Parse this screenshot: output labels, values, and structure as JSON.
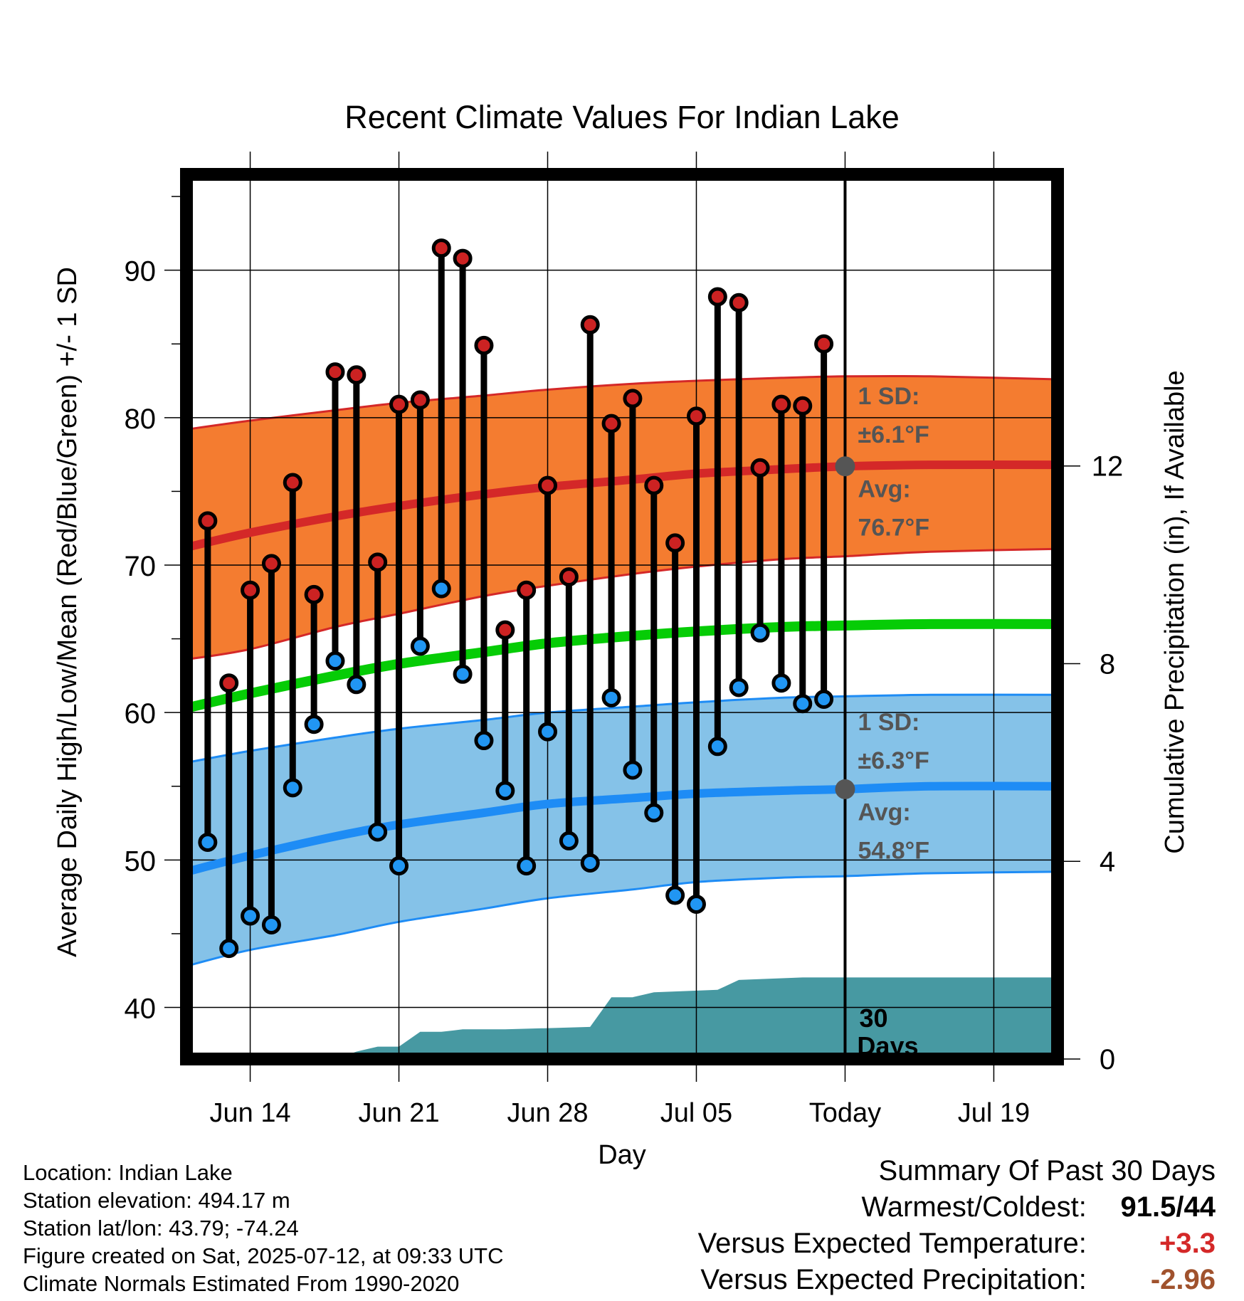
{
  "colors": {
    "high_band": "#f47c30",
    "high_line": "#d42828",
    "low_band": "#85c2e8",
    "low_line": "#1e8cf5",
    "mean_line": "#06cc06",
    "precip": "#4799a2",
    "high_marker": "#cc2222",
    "low_marker": "#2196f3",
    "avg_marker": "#555555",
    "annotation": "#555555",
    "temp_anomaly": "#d42828",
    "precip_anomaly": "#a0522d"
  },
  "chart_data": {
    "type": "line",
    "title": "Recent Climate Values For Indian Lake",
    "xlabel": "Day",
    "ylabel": "Average Daily High/Low/Mean (Red/Blue/Green) +/- 1 SD",
    "y2label": "Cumulative Precipitation (in), If Available",
    "ylim": [
      36.5,
      96.5
    ],
    "y_ticks": [
      40,
      50,
      60,
      70,
      80,
      90
    ],
    "y2lim": [
      0,
      17.9
    ],
    "y2_ticks": [
      0,
      4,
      8,
      12
    ],
    "xlim": [
      "2025-06-11",
      "2025-07-22"
    ],
    "x_ticks": [
      {
        "date": "2025-06-14",
        "label": "Jun 14"
      },
      {
        "date": "2025-06-21",
        "label": "Jun 21"
      },
      {
        "date": "2025-06-28",
        "label": "Jun 28"
      },
      {
        "date": "2025-07-05",
        "label": "Jul 05"
      },
      {
        "date": "2025-07-12",
        "label": "Today"
      },
      {
        "date": "2025-07-19",
        "label": "Jul 19"
      }
    ],
    "grid": true,
    "today": "2025-07-12",
    "normals": {
      "dates": [
        "2025-06-11",
        "2025-06-14",
        "2025-06-18",
        "2025-06-21",
        "2025-06-25",
        "2025-06-28",
        "2025-07-02",
        "2025-07-05",
        "2025-07-09",
        "2025-07-12",
        "2025-07-16",
        "2025-07-22"
      ],
      "high_mean": [
        71.2,
        72.2,
        73.3,
        74.0,
        74.8,
        75.3,
        75.8,
        76.2,
        76.5,
        76.7,
        76.8,
        76.8
      ],
      "high_upper": [
        79.2,
        79.8,
        80.5,
        81.0,
        81.5,
        81.9,
        82.3,
        82.5,
        82.7,
        82.8,
        82.8,
        82.6
      ],
      "high_lower": [
        63.6,
        64.3,
        65.8,
        66.7,
        67.9,
        68.6,
        69.4,
        69.9,
        70.4,
        70.6,
        70.9,
        71.1
      ],
      "mean": [
        60.3,
        61.3,
        62.5,
        63.3,
        64.1,
        64.7,
        65.2,
        65.5,
        65.8,
        65.9,
        66.0,
        66.0
      ],
      "low_mean": [
        49.2,
        50.3,
        51.6,
        52.4,
        53.2,
        53.8,
        54.2,
        54.5,
        54.7,
        54.8,
        55.0,
        55.0
      ],
      "low_upper": [
        56.6,
        57.4,
        58.3,
        58.9,
        59.5,
        60.0,
        60.4,
        60.7,
        61.0,
        61.1,
        61.2,
        61.2
      ],
      "low_lower": [
        42.8,
        43.9,
        44.9,
        45.8,
        46.7,
        47.4,
        48.0,
        48.5,
        48.8,
        48.9,
        49.1,
        49.2
      ]
    },
    "daily": {
      "dates": [
        "2025-06-12",
        "2025-06-13",
        "2025-06-14",
        "2025-06-15",
        "2025-06-16",
        "2025-06-17",
        "2025-06-18",
        "2025-06-19",
        "2025-06-20",
        "2025-06-21",
        "2025-06-22",
        "2025-06-23",
        "2025-06-24",
        "2025-06-25",
        "2025-06-26",
        "2025-06-27",
        "2025-06-28",
        "2025-06-29",
        "2025-06-30",
        "2025-07-01",
        "2025-07-02",
        "2025-07-03",
        "2025-07-04",
        "2025-07-05",
        "2025-07-06",
        "2025-07-07",
        "2025-07-08",
        "2025-07-09",
        "2025-07-10",
        "2025-07-11"
      ],
      "high": [
        73.0,
        62.0,
        68.3,
        70.1,
        75.6,
        68.0,
        83.1,
        82.9,
        70.2,
        80.9,
        81.2,
        91.5,
        90.8,
        84.9,
        65.6,
        68.3,
        75.4,
        69.2,
        86.3,
        79.6,
        81.3,
        75.4,
        71.5,
        80.1,
        88.2,
        87.8,
        76.6,
        80.9,
        80.8,
        85.0
      ],
      "low": [
        51.2,
        44.0,
        46.2,
        45.6,
        54.9,
        59.2,
        63.5,
        61.9,
        51.9,
        49.6,
        64.5,
        68.4,
        62.6,
        58.1,
        54.7,
        49.6,
        58.7,
        51.3,
        49.8,
        61.0,
        56.1,
        53.2,
        47.6,
        47.0,
        57.7,
        61.7,
        65.4,
        62.0,
        60.6,
        60.9
      ]
    },
    "precip_cumulative": {
      "dates": [
        "2025-06-11",
        "2025-06-18",
        "2025-06-19",
        "2025-06-20",
        "2025-06-21",
        "2025-06-22",
        "2025-06-23",
        "2025-06-24",
        "2025-06-26",
        "2025-06-30",
        "2025-07-01",
        "2025-07-02",
        "2025-07-03",
        "2025-07-06",
        "2025-07-07",
        "2025-07-10",
        "2025-07-12",
        "2025-07-22"
      ],
      "values": [
        0.0,
        0.0,
        0.15,
        0.25,
        0.25,
        0.55,
        0.55,
        0.6,
        0.6,
        0.65,
        1.25,
        1.25,
        1.35,
        1.4,
        1.6,
        1.65,
        1.65,
        1.65
      ]
    },
    "annotations": {
      "high_sd_label": "1 SD:",
      "high_sd_value": "±6.1°F",
      "high_avg_label": "Avg:",
      "high_avg_value": "76.7°F",
      "low_sd_label": "1 SD:",
      "low_sd_value": "±6.3°F",
      "low_avg_label": "Avg:",
      "low_avg_value": "54.8°F",
      "days_number": "30",
      "days_word": "Days"
    }
  },
  "info": {
    "location": "Location: Indian Lake",
    "elevation": "Station elevation: 494.17 m",
    "latlon": "Station lat/lon: 43.79; -74.24",
    "created": "Figure created on Sat, 2025-07-12, at 09:33 UTC",
    "normals": "Climate Normals Estimated From 1990-2020"
  },
  "summary": {
    "title": "Summary Of Past 30 Days",
    "warmest_label": "Warmest/Coldest:",
    "warmest_value": "91.5/44",
    "temp_label": "Versus Expected Temperature:",
    "temp_value": "+3.3",
    "precip_label": "Versus Expected Precipitation:",
    "precip_value": "-2.96"
  }
}
